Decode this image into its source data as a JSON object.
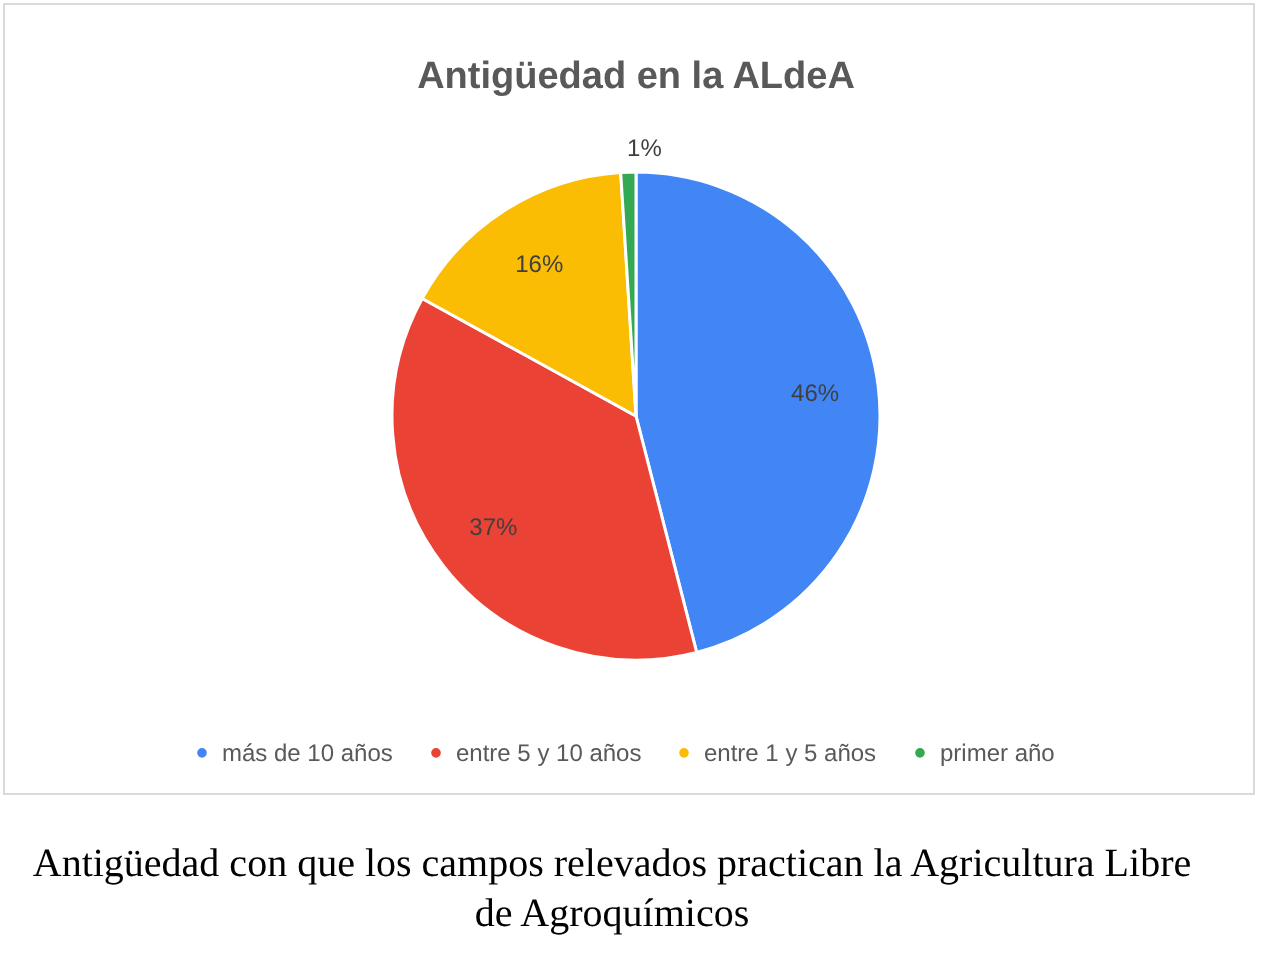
{
  "chart_data": {
    "type": "pie",
    "title": "Antigüedad en la ALdeA",
    "categories": [
      "más de 10 años",
      "entre 5 y 10 años",
      "entre 1 y 5 años",
      "primer año"
    ],
    "values": [
      46,
      37,
      16,
      1
    ],
    "colors": [
      "#4285f4",
      "#ea4335",
      "#fbbc04",
      "#34a853"
    ],
    "value_labels": [
      "46%",
      "37%",
      "16%",
      "1%"
    ],
    "legend": "bottom",
    "annotations": [
      "Antigüedad con que los campos relevados practican la Agricultura Libre de Agroquímicos"
    ]
  }
}
